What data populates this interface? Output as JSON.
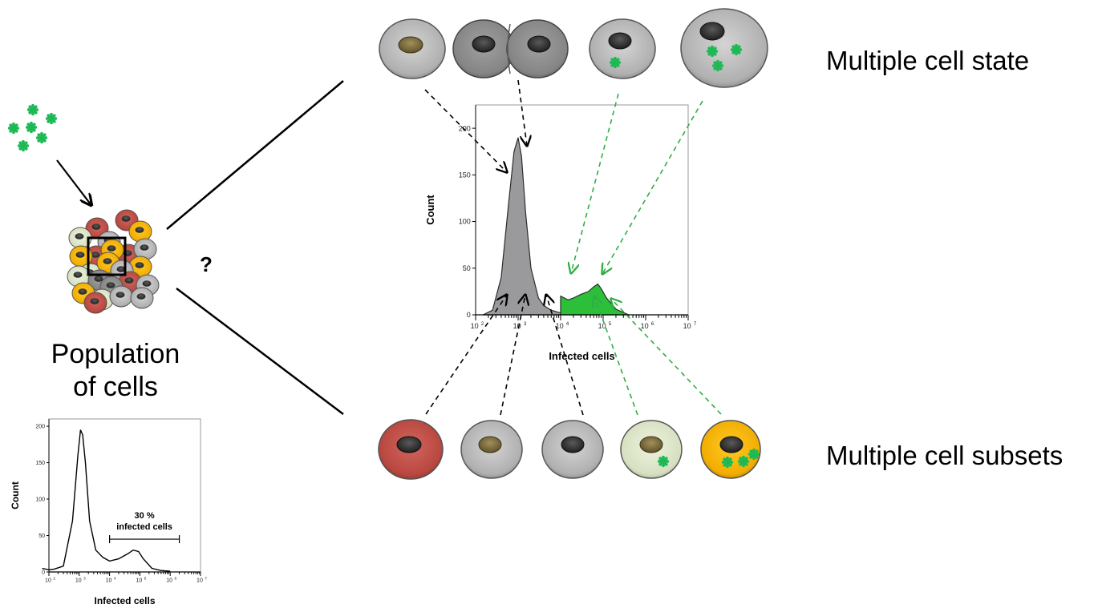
{
  "labels": {
    "population_line1": "Population",
    "population_line2": "of cells",
    "question": "?",
    "cell_state": "Multiple cell state",
    "cell_subsets": "Multiple cell subsets"
  },
  "colors": {
    "virus_green": "#1db954",
    "infected_fill_green": "#2bbf3a",
    "uninfected_fill_gray": "#9a9a9c",
    "arrow_black": "#000000",
    "arrow_green": "#2fae45",
    "cell_red": "#c2504a",
    "cell_light_gray": "#c4c4c4",
    "cell_mid_gray": "#a8a8a8",
    "cell_pale_green": "#dfe8cc",
    "cell_yellow": "#f5b400"
  },
  "chart_data": [
    {
      "type": "area",
      "role": "center-histogram",
      "xlabel": "Infected cells",
      "ylabel": "Count",
      "x_scale": "log",
      "xlim": [
        100,
        10000000
      ],
      "ylim": [
        0,
        225
      ],
      "x_ticks": [
        "10",
        "10",
        "10",
        "10",
        "10",
        "10"
      ],
      "x_tick_exponents": [
        "2",
        "3",
        "4",
        "5",
        "6",
        "7"
      ],
      "y_ticks": [
        "0",
        "50",
        "100",
        "150",
        "200"
      ],
      "y_tick_values": [
        0,
        50,
        100,
        150,
        200
      ],
      "series": [
        {
          "color": "#9a9a9c",
          "points": [
            [
              150,
              0
            ],
            [
              250,
              5
            ],
            [
              400,
              40
            ],
            [
              600,
              120
            ],
            [
              800,
              175
            ],
            [
              1000,
              190
            ],
            [
              1200,
              170
            ],
            [
              1500,
              110
            ],
            [
              2000,
              50
            ],
            [
              3000,
              18
            ],
            [
              4000,
              10
            ],
            [
              6000,
              5
            ],
            [
              10000,
              2
            ]
          ]
        },
        {
          "color": "#2bbf3a",
          "points": [
            [
              10000,
              20
            ],
            [
              15000,
              16
            ],
            [
              20000,
              18
            ],
            [
              30000,
              22
            ],
            [
              45000,
              25
            ],
            [
              60000,
              30
            ],
            [
              75000,
              33
            ],
            [
              90000,
              28
            ],
            [
              120000,
              18
            ],
            [
              200000,
              6
            ],
            [
              400000,
              0
            ]
          ]
        }
      ]
    },
    {
      "type": "line",
      "role": "inset-histogram",
      "xlabel": "Infected cells",
      "ylabel": "Count",
      "x_scale": "log",
      "xlim": [
        100,
        10000000
      ],
      "ylim": [
        0,
        210
      ],
      "x_ticks": [
        "10",
        "10",
        "10",
        "10",
        "10",
        "10"
      ],
      "x_tick_exponents": [
        "2",
        "3",
        "4",
        "5",
        "6",
        "7"
      ],
      "y_ticks": [
        "0",
        "50",
        "100",
        "150",
        "200"
      ],
      "y_tick_values": [
        0,
        50,
        100,
        150,
        200
      ],
      "gate_label_line1": "30 %",
      "gate_label_line2": "infected cells",
      "gate_range": [
        10000,
        2000000
      ],
      "gate_y": 45,
      "series": [
        {
          "color": "#000000",
          "points": [
            [
              60,
              5
            ],
            [
              100,
              3
            ],
            [
              150,
              4
            ],
            [
              300,
              8
            ],
            [
              600,
              70
            ],
            [
              900,
              160
            ],
            [
              1100,
              195
            ],
            [
              1300,
              188
            ],
            [
              1600,
              150
            ],
            [
              2200,
              70
            ],
            [
              3500,
              30
            ],
            [
              6000,
              20
            ],
            [
              10000,
              15
            ],
            [
              20000,
              18
            ],
            [
              40000,
              25
            ],
            [
              60000,
              30
            ],
            [
              90000,
              28
            ],
            [
              130000,
              18
            ],
            [
              250000,
              5
            ],
            [
              500000,
              2
            ],
            [
              1000000,
              1
            ]
          ]
        }
      ]
    }
  ]
}
